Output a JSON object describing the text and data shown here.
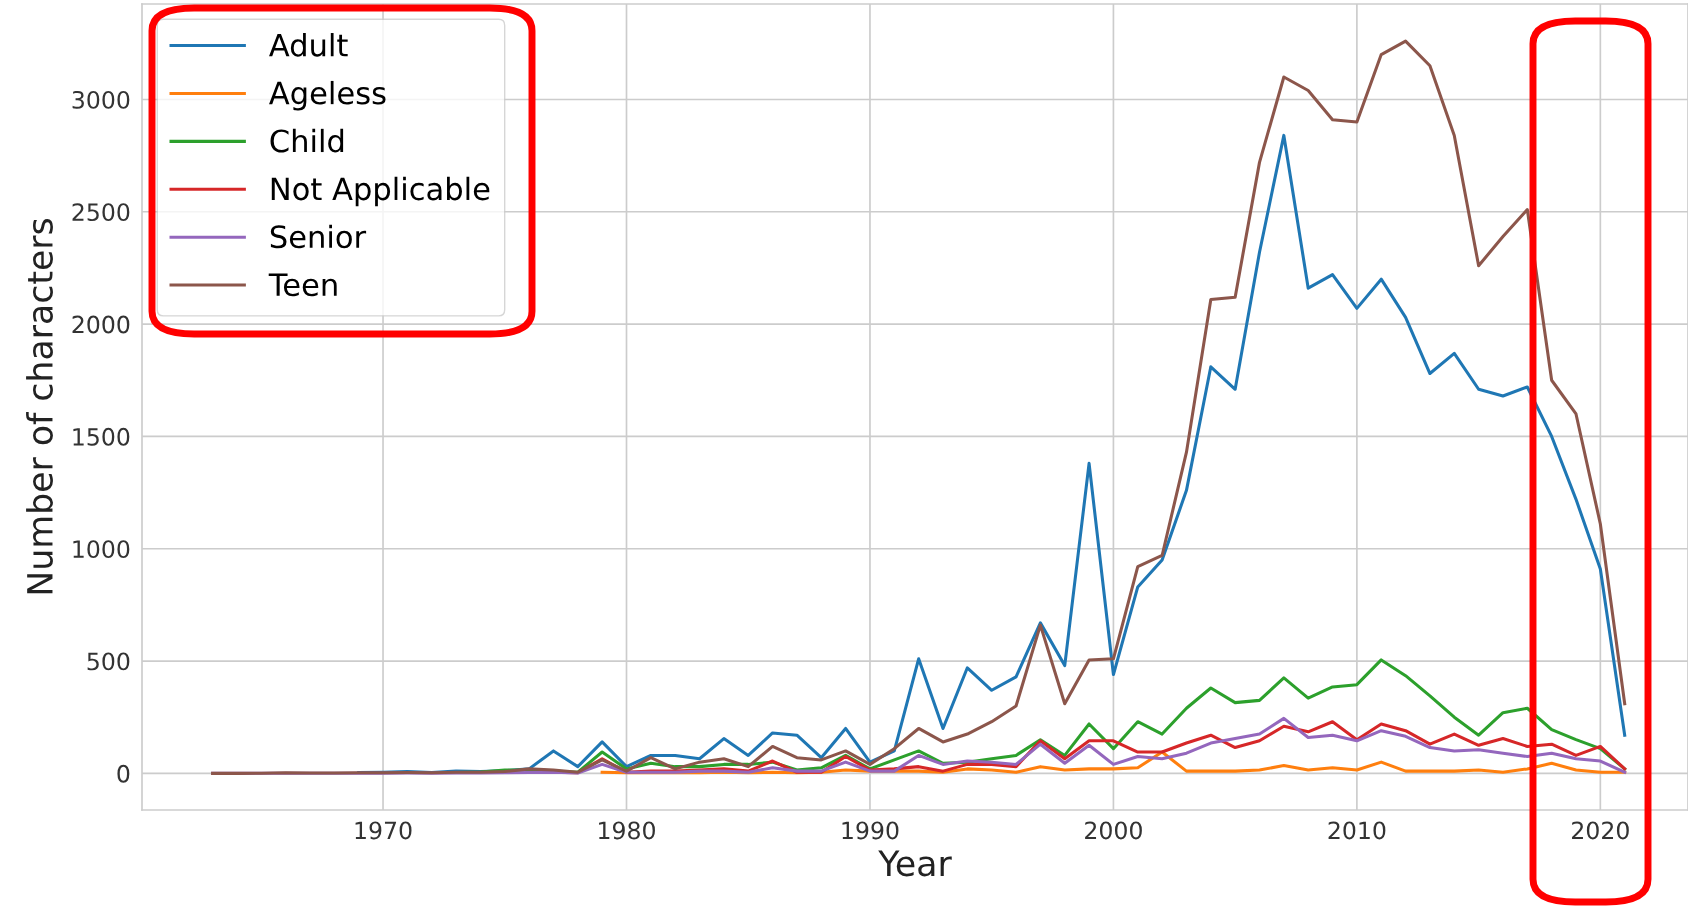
{
  "chart_data": {
    "type": "line",
    "xlabel": "Year",
    "ylabel": "Number of characters",
    "x": [
      1963,
      1964,
      1965,
      1966,
      1967,
      1968,
      1969,
      1970,
      1971,
      1972,
      1973,
      1974,
      1975,
      1976,
      1977,
      1978,
      1979,
      1980,
      1981,
      1982,
      1983,
      1984,
      1985,
      1986,
      1987,
      1988,
      1989,
      1990,
      1991,
      1992,
      1993,
      1994,
      1995,
      1996,
      1997,
      1998,
      1999,
      2000,
      2001,
      2002,
      2003,
      2004,
      2005,
      2006,
      2007,
      2008,
      2009,
      2010,
      2011,
      2012,
      2013,
      2014,
      2015,
      2016,
      2017,
      2018,
      2019,
      2020,
      2021
    ],
    "series": [
      {
        "name": "Adult",
        "color": "#1f77b4",
        "values": [
          null,
          null,
          null,
          null,
          null,
          null,
          4,
          5,
          8,
          4,
          10,
          8,
          12,
          20,
          100,
          30,
          140,
          30,
          80,
          80,
          65,
          155,
          80,
          180,
          170,
          70,
          200,
          50,
          100,
          510,
          200,
          470,
          370,
          430,
          670,
          480,
          1380,
          440,
          830,
          950,
          1260,
          1810,
          1710,
          2320,
          2840,
          2160,
          2220,
          2070,
          2200,
          2030,
          1780,
          1870,
          1710,
          1680,
          1720,
          1500,
          1220,
          910,
          170
        ]
      },
      {
        "name": "Ageless",
        "color": "#ff7f0e",
        "x": [
          1979,
          1980,
          1981,
          1982,
          1983,
          1984,
          1985,
          1986,
          1987,
          1988,
          1989,
          1990,
          1991,
          1992,
          1993,
          1994,
          1995,
          1996,
          1997,
          1998,
          1999,
          2000,
          2001,
          2002,
          2003,
          2004,
          2005,
          2006,
          2007,
          2008,
          2009,
          2010,
          2011,
          2012,
          2013,
          2014,
          2015,
          2016,
          2017,
          2018,
          2019,
          2020,
          2021
        ],
        "values": [
          5,
          3,
          3,
          3,
          3,
          5,
          3,
          5,
          3,
          5,
          15,
          10,
          10,
          10,
          5,
          20,
          15,
          5,
          30,
          15,
          20,
          20,
          25,
          95,
          10,
          10,
          10,
          15,
          35,
          15,
          25,
          15,
          50,
          10,
          10,
          10,
          15,
          5,
          20,
          45,
          15,
          5,
          5
        ]
      },
      {
        "name": "Child",
        "color": "#2ca02c",
        "values": [
          null,
          null,
          null,
          null,
          null,
          null,
          null,
          null,
          null,
          null,
          4,
          6,
          15,
          15,
          10,
          5,
          95,
          20,
          45,
          30,
          30,
          40,
          40,
          50,
          15,
          25,
          80,
          20,
          60,
          100,
          45,
          50,
          65,
          80,
          150,
          80,
          220,
          110,
          230,
          175,
          290,
          380,
          315,
          325,
          425,
          335,
          385,
          395,
          505,
          435,
          345,
          250,
          170,
          270,
          290,
          195,
          150,
          110,
          20
        ]
      },
      {
        "name": "Not Applicable",
        "color": "#d62728",
        "values": [
          null,
          null,
          null,
          null,
          null,
          null,
          null,
          null,
          null,
          null,
          null,
          null,
          null,
          null,
          5,
          3,
          65,
          5,
          10,
          10,
          15,
          20,
          10,
          55,
          5,
          5,
          75,
          15,
          20,
          30,
          10,
          40,
          40,
          30,
          145,
          65,
          145,
          145,
          95,
          95,
          135,
          170,
          115,
          145,
          210,
          185,
          230,
          150,
          220,
          190,
          130,
          175,
          125,
          155,
          120,
          130,
          80,
          120,
          20
        ]
      },
      {
        "name": "Senior",
        "color": "#9467bd",
        "values": [
          0,
          0,
          1,
          1,
          1,
          1,
          1,
          1,
          2,
          1,
          2,
          2,
          3,
          4,
          5,
          2,
          40,
          5,
          5,
          5,
          10,
          10,
          5,
          25,
          10,
          10,
          50,
          10,
          10,
          80,
          40,
          55,
          50,
          40,
          130,
          45,
          125,
          40,
          75,
          65,
          90,
          135,
          155,
          175,
          245,
          160,
          170,
          145,
          190,
          165,
          115,
          100,
          105,
          90,
          75,
          90,
          65,
          55,
          5
        ]
      },
      {
        "name": "Teen",
        "color": "#8c564b",
        "values": [
          0,
          0,
          1,
          3,
          2,
          2,
          3,
          3,
          4,
          3,
          5,
          5,
          8,
          20,
          15,
          5,
          60,
          10,
          70,
          20,
          50,
          65,
          30,
          120,
          70,
          60,
          100,
          40,
          110,
          200,
          140,
          175,
          230,
          300,
          660,
          310,
          505,
          510,
          920,
          970,
          1430,
          2110,
          2120,
          2720,
          3100,
          3040,
          2910,
          2900,
          3200,
          3260,
          3150,
          2840,
          2260,
          2390,
          2510,
          1750,
          1600,
          1110,
          310
        ]
      }
    ],
    "xlim": [
      1960.1,
      2023.6
    ],
    "ylim": [
      -163,
      3425
    ],
    "xticks": [
      1970,
      1980,
      1990,
      2000,
      2010,
      2020
    ],
    "yticks": [
      0,
      500,
      1000,
      1500,
      2000,
      2500,
      3000
    ],
    "grid": true,
    "legend": "top left",
    "line_style": "solid"
  }
}
